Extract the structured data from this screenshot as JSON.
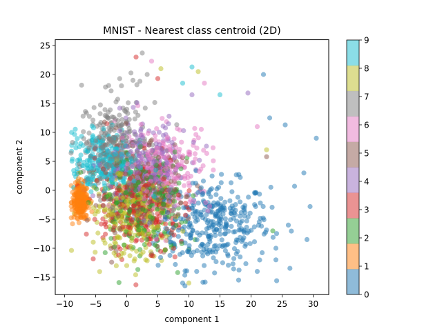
{
  "chart_data": {
    "type": "scatter",
    "title": "MNIST - Nearest class centroid (2D)",
    "xlabel": "component 1",
    "ylabel": "component 2",
    "xlim": [
      -11.5,
      32.5
    ],
    "ylim": [
      -18,
      26
    ],
    "xticks": [
      -10,
      -5,
      0,
      5,
      10,
      15,
      20,
      25,
      30
    ],
    "yticks": [
      -15,
      -10,
      -5,
      0,
      5,
      10,
      15,
      20,
      25
    ],
    "grid": false,
    "point_alpha": 0.5,
    "colorbar": {
      "range": [
        0,
        9
      ],
      "ticks": [
        "0",
        "1",
        "2",
        "3",
        "4",
        "5",
        "6",
        "7",
        "8",
        "9"
      ],
      "colors": [
        "#1f77b4",
        "#ff7f0e",
        "#2ca02c",
        "#d62728",
        "#9467bd",
        "#8c564b",
        "#e377c2",
        "#7f7f7f",
        "#bcbd22",
        "#17becf"
      ]
    },
    "clusters": [
      {
        "class": 0,
        "center": [
          14,
          -6
        ],
        "spread": [
          6,
          5
        ],
        "n": 340
      },
      {
        "class": 1,
        "center": [
          -7.5,
          -2
        ],
        "spread": [
          0.9,
          2
        ],
        "n": 260
      },
      {
        "class": 2,
        "center": [
          3,
          -2
        ],
        "spread": [
          5,
          5.5
        ],
        "n": 260
      },
      {
        "class": 3,
        "center": [
          2,
          -3
        ],
        "spread": [
          4.5,
          5.5
        ],
        "n": 260
      },
      {
        "class": 4,
        "center": [
          3,
          4
        ],
        "spread": [
          4.5,
          5
        ],
        "n": 240
      },
      {
        "class": 5,
        "center": [
          2,
          0
        ],
        "spread": [
          5,
          5.5
        ],
        "n": 220
      },
      {
        "class": 6,
        "center": [
          6,
          4
        ],
        "spread": [
          5,
          5
        ],
        "n": 240
      },
      {
        "class": 7,
        "center": [
          -2,
          8
        ],
        "spread": [
          3.5,
          5.5
        ],
        "n": 260
      },
      {
        "class": 8,
        "center": [
          1,
          -4
        ],
        "spread": [
          4.5,
          5
        ],
        "n": 250
      },
      {
        "class": 9,
        "center": [
          -4,
          5
        ],
        "spread": [
          3.5,
          3.5
        ],
        "n": 250
      }
    ],
    "outliers": [
      {
        "class": 0,
        "x": 30.5,
        "y": 9
      },
      {
        "class": 0,
        "x": 29.5,
        "y": -2.8
      },
      {
        "class": 0,
        "x": 29,
        "y": -8.5
      },
      {
        "class": 0,
        "x": 28.5,
        "y": 3
      },
      {
        "class": 0,
        "x": 27,
        "y": 0.7
      },
      {
        "class": 0,
        "x": 25.5,
        "y": 11.3
      },
      {
        "class": 0,
        "x": 22,
        "y": 20
      },
      {
        "class": 0,
        "x": 23,
        "y": 12.5
      },
      {
        "class": 0,
        "x": 21,
        "y": -14
      },
      {
        "class": 0,
        "x": 24,
        "y": -12
      },
      {
        "class": 0,
        "x": 9,
        "y": -16
      },
      {
        "class": 0,
        "x": 18,
        "y": -15.5
      },
      {
        "class": 9,
        "x": 10.5,
        "y": 21.3
      },
      {
        "class": 9,
        "x": 15,
        "y": 16.5
      },
      {
        "class": 9,
        "x": 9,
        "y": 18.5
      },
      {
        "class": 3,
        "x": 1.5,
        "y": 23
      },
      {
        "class": 3,
        "x": 5,
        "y": 19.3
      },
      {
        "class": 7,
        "x": 2.5,
        "y": 23.7
      },
      {
        "class": 7,
        "x": 1,
        "y": 19
      },
      {
        "class": 8,
        "x": 11.5,
        "y": 20.5
      },
      {
        "class": 8,
        "x": 5.5,
        "y": 21
      },
      {
        "class": 6,
        "x": 4,
        "y": 22.3
      },
      {
        "class": 6,
        "x": 12.5,
        "y": 18.5
      },
      {
        "class": 4,
        "x": 19.5,
        "y": 16.8
      },
      {
        "class": 4,
        "x": 10.5,
        "y": 16.5
      },
      {
        "class": 8,
        "x": 22.5,
        "y": 7
      },
      {
        "class": 6,
        "x": 21,
        "y": 11
      },
      {
        "class": 0,
        "x": 26,
        "y": -6
      },
      {
        "class": 0,
        "x": 24,
        "y": -10
      },
      {
        "class": 8,
        "x": 10,
        "y": -16
      },
      {
        "class": 8,
        "x": 0,
        "y": -13
      },
      {
        "class": 2,
        "x": 23.5,
        "y": -7
      },
      {
        "class": 5,
        "x": 22.5,
        "y": 5.8
      }
    ]
  }
}
